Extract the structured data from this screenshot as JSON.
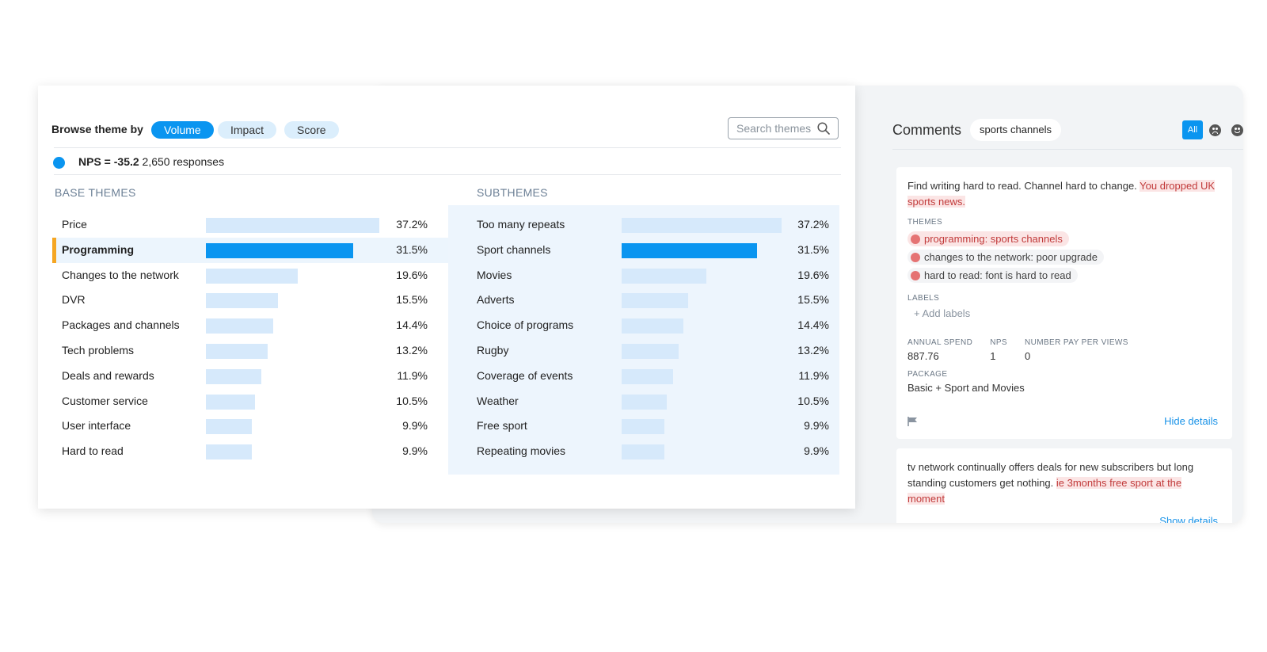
{
  "browse": {
    "label": "Browse theme by",
    "options": [
      "Volume",
      "Impact",
      "Score"
    ],
    "active": "Volume"
  },
  "search": {
    "placeholder": "Search themes"
  },
  "nps": {
    "label": "NPS = -35.2",
    "responses": "2,650 responses",
    "color": "#0a95f0"
  },
  "base_themes": {
    "heading": "BASE THEMES",
    "selected_index": 1,
    "items": [
      {
        "label": "Price",
        "pct": "37.2%",
        "value": 37.2
      },
      {
        "label": "Programming",
        "pct": "31.5%",
        "value": 31.5
      },
      {
        "label": "Changes to the network",
        "pct": "19.6%",
        "value": 19.6
      },
      {
        "label": "DVR",
        "pct": "15.5%",
        "value": 15.5
      },
      {
        "label": "Packages and channels",
        "pct": "14.4%",
        "value": 14.4
      },
      {
        "label": "Tech problems",
        "pct": "13.2%",
        "value": 13.2
      },
      {
        "label": "Deals and rewards",
        "pct": "11.9%",
        "value": 11.9
      },
      {
        "label": "Customer service",
        "pct": "10.5%",
        "value": 10.5
      },
      {
        "label": "User interface",
        "pct": "9.9%",
        "value": 9.9
      },
      {
        "label": "Hard to read",
        "pct": "9.9%",
        "value": 9.9
      }
    ]
  },
  "subthemes": {
    "heading": "SUBTHEMES",
    "selected_index": 1,
    "items": [
      {
        "label": "Too many repeats",
        "pct": "37.2%",
        "value": 37.2
      },
      {
        "label": "Sport channels",
        "pct": "31.5%",
        "value": 31.5
      },
      {
        "label": "Movies",
        "pct": "19.6%",
        "value": 19.6
      },
      {
        "label": "Adverts",
        "pct": "15.5%",
        "value": 15.5
      },
      {
        "label": "Choice of programs",
        "pct": "14.4%",
        "value": 14.4
      },
      {
        "label": "Rugby",
        "pct": "13.2%",
        "value": 13.2
      },
      {
        "label": "Coverage of events",
        "pct": "11.9%",
        "value": 11.9
      },
      {
        "label": "Weather",
        "pct": "10.5%",
        "value": 10.5
      },
      {
        "label": "Free sport",
        "pct": "9.9%",
        "value": 9.9
      },
      {
        "label": "Repeating movies",
        "pct": "9.9%",
        "value": 9.9
      }
    ]
  },
  "comments": {
    "title": "Comments",
    "filter_chip": "sports channels",
    "sentiment_filter": {
      "all_label": "All",
      "icons": [
        "sad-face-icon",
        "happy-face-icon"
      ],
      "active_color": "#0a95f0"
    },
    "cards": [
      {
        "text_plain": "Find writing hard to read. Channel hard to change. ",
        "text_highlight": "You dropped UK sports news.",
        "themes_heading": "THEMES",
        "themes": [
          "programming: sports channels",
          "changes to the network: poor upgrade",
          "hard to read: font is hard to read"
        ],
        "labels_heading": "LABELS",
        "add_labels": "+ Add labels",
        "meta": [
          {
            "key": "ANNUAL SPEND",
            "value": "887.76"
          },
          {
            "key": "NPS",
            "value": "1"
          },
          {
            "key": "NUMBER PAY PER VIEWS",
            "value": "0"
          }
        ],
        "package_heading": "PACKAGE",
        "package_value": "Basic + Sport and Movies",
        "details_link": "Hide details"
      },
      {
        "text_plain": "tv network continually offers deals for new subscribers but long standing customers get nothing. ",
        "text_highlight": "ie 3months free sport at the moment",
        "details_link": "Show details"
      }
    ]
  }
}
